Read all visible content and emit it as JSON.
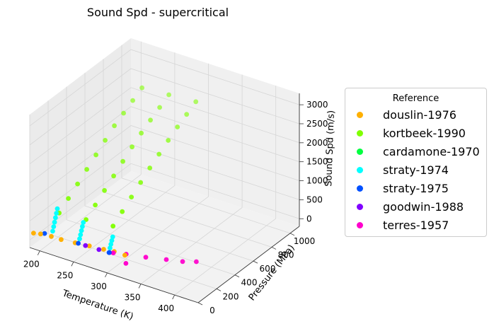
{
  "chart_data": {
    "type": "scatter",
    "projection": "3d",
    "title": "Sound Spd - supercritical",
    "xlabel": "Temperature (K)",
    "ylabel": "Pressure (MPa)",
    "zlabel": "Sound Spd (m/s)",
    "xlim": [
      185,
      435
    ],
    "ylim": [
      0,
      1100
    ],
    "zlim": [
      -200,
      3300
    ],
    "xticks": [
      200,
      250,
      300,
      350,
      400
    ],
    "yticks": [
      0,
      200,
      400,
      600,
      800,
      1000
    ],
    "zticks": [
      0,
      500,
      1000,
      1500,
      2000,
      2500,
      3000
    ],
    "grid": true,
    "legend_title": "Reference",
    "legend_position": "right",
    "series": [
      {
        "name": "douslin-1976",
        "color": "#ffb000",
        "points": [
          [
            190,
            5,
            200
          ],
          [
            200,
            8,
            230
          ],
          [
            215,
            15,
            240
          ],
          [
            230,
            12,
            250
          ],
          [
            250,
            18,
            270
          ],
          [
            270,
            25,
            290
          ],
          [
            290,
            35,
            300
          ],
          [
            305,
            40,
            320
          ],
          [
            320,
            45,
            300
          ]
        ]
      },
      {
        "name": "kortbeek-1990",
        "color": "#80ff00",
        "points": [
          [
            215,
            100,
            700
          ],
          [
            215,
            200,
            900
          ],
          [
            215,
            300,
            1100
          ],
          [
            215,
            400,
            1300
          ],
          [
            215,
            500,
            1500
          ],
          [
            215,
            600,
            1700
          ],
          [
            215,
            700,
            1900
          ],
          [
            215,
            800,
            2050
          ],
          [
            215,
            900,
            2200
          ],
          [
            215,
            1000,
            2350
          ],
          [
            255,
            100,
            760
          ],
          [
            255,
            200,
            960
          ],
          [
            255,
            300,
            1160
          ],
          [
            255,
            400,
            1360
          ],
          [
            255,
            500,
            1560
          ],
          [
            255,
            600,
            1760
          ],
          [
            255,
            700,
            1940
          ],
          [
            255,
            800,
            2100
          ],
          [
            255,
            900,
            2250
          ],
          [
            255,
            1000,
            2400
          ],
          [
            295,
            100,
            820
          ],
          [
            295,
            200,
            1020
          ],
          [
            295,
            300,
            1220
          ],
          [
            295,
            400,
            1420
          ],
          [
            295,
            500,
            1620
          ],
          [
            295,
            600,
            1800
          ],
          [
            295,
            700,
            1980
          ],
          [
            295,
            800,
            2150
          ],
          [
            295,
            900,
            2300
          ],
          [
            295,
            1000,
            2450
          ]
        ]
      },
      {
        "name": "cardamone-1970",
        "color": "#00ff40",
        "points": []
      },
      {
        "name": "straty-1974",
        "color": "#00ffff",
        "points": [
          [
            215,
            30,
            350
          ],
          [
            215,
            40,
            450
          ],
          [
            215,
            50,
            550
          ],
          [
            215,
            60,
            650
          ],
          [
            215,
            70,
            750
          ],
          [
            215,
            80,
            850
          ],
          [
            255,
            30,
            380
          ],
          [
            255,
            40,
            470
          ],
          [
            255,
            50,
            560
          ],
          [
            255,
            60,
            650
          ],
          [
            255,
            70,
            740
          ],
          [
            300,
            30,
            400
          ],
          [
            300,
            40,
            480
          ],
          [
            300,
            50,
            560
          ],
          [
            300,
            60,
            640
          ]
        ]
      },
      {
        "name": "straty-1975",
        "color": "#0050ff",
        "points": [
          [
            205,
            15,
            260
          ],
          [
            255,
            15,
            290
          ],
          [
            300,
            20,
            300
          ]
        ]
      },
      {
        "name": "goodwin-1988",
        "color": "#8000ff",
        "points": [
          [
            265,
            20,
            280
          ],
          [
            285,
            20,
            290
          ],
          [
            300,
            25,
            290
          ]
        ]
      },
      {
        "name": "terres-1957",
        "color": "#ff00cc",
        "points": [
          [
            305,
            30,
            300
          ],
          [
            320,
            60,
            300
          ],
          [
            345,
            90,
            310
          ],
          [
            370,
            130,
            320
          ],
          [
            390,
            160,
            330
          ],
          [
            405,
            200,
            340
          ],
          [
            325,
            20,
            160
          ]
        ]
      }
    ]
  }
}
